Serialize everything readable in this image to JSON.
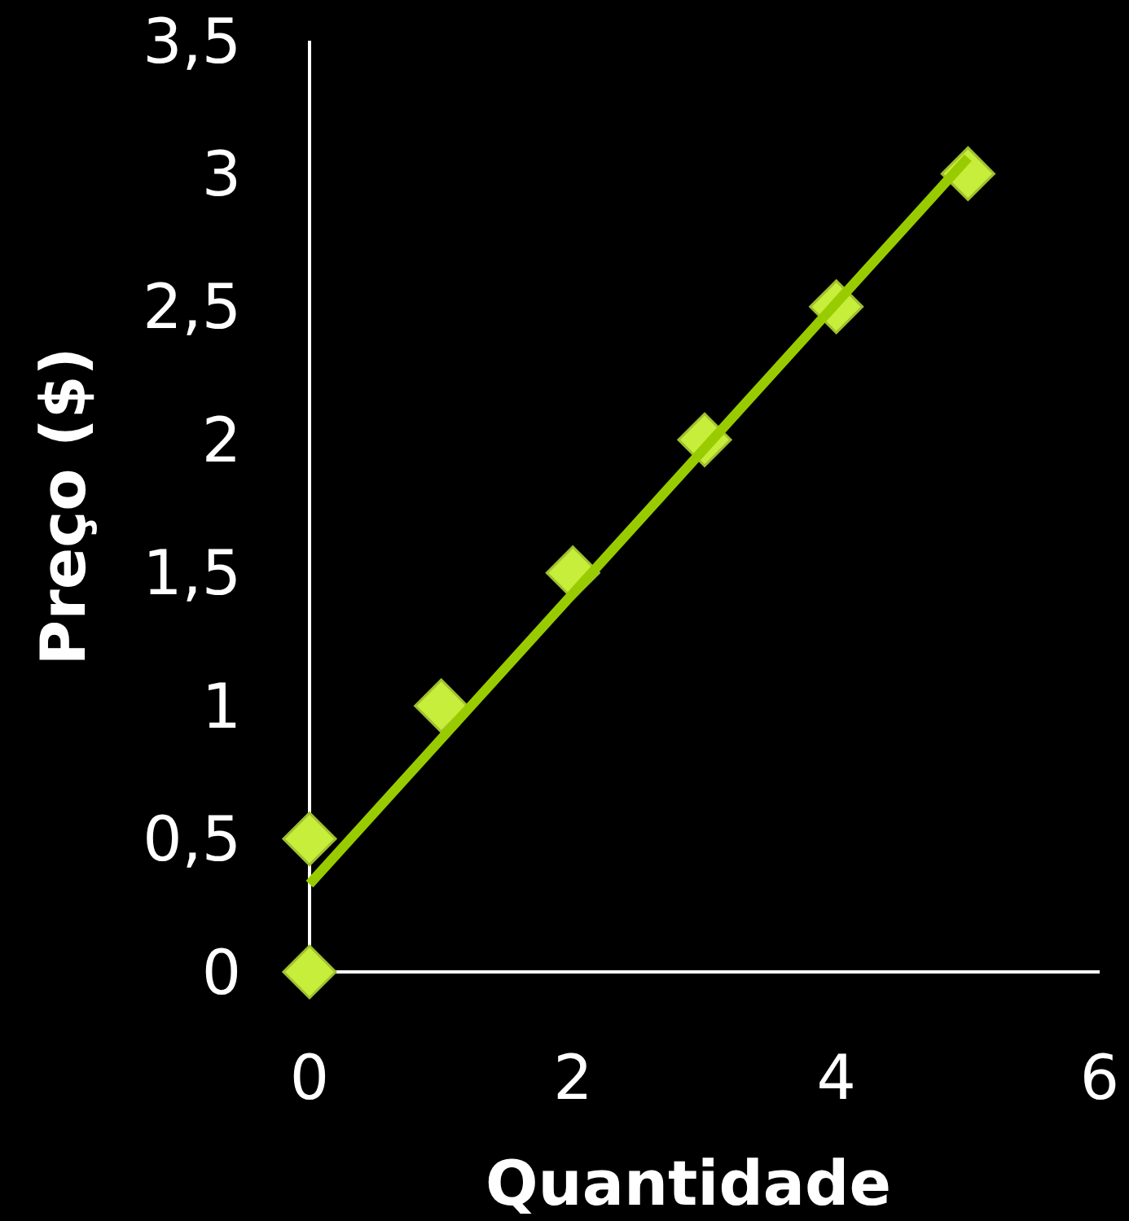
{
  "chart_data": {
    "type": "scatter",
    "xlabel": "Quantidade",
    "ylabel": "Preço ($)",
    "xlim": [
      0,
      6
    ],
    "xticks": [
      0,
      2,
      4,
      6
    ],
    "ylim": [
      0,
      3.5
    ],
    "yticks": [
      {
        "value": 0,
        "label": "0"
      },
      {
        "value": 0.5,
        "label": "0,5"
      },
      {
        "value": 1,
        "label": "1"
      },
      {
        "value": 1.5,
        "label": "1,5"
      },
      {
        "value": 2,
        "label": "2"
      },
      {
        "value": 2.5,
        "label": "2,5"
      },
      {
        "value": 3,
        "label": "3"
      },
      {
        "value": 3.5,
        "label": "3,5"
      }
    ],
    "grid": false,
    "series": [
      {
        "color": "#c6ee3a",
        "marker": "diamond",
        "x": [
          0,
          0,
          1,
          2,
          3,
          4,
          5
        ],
        "values": [
          0,
          0.5,
          1,
          1.5,
          2,
          2.5,
          3
        ]
      },
      {
        "type": "line",
        "color": "#99cc00",
        "x": [
          0,
          5
        ],
        "values": [
          0.33,
          3.06
        ],
        "line_style": "solid",
        "marker": "none"
      }
    ]
  }
}
